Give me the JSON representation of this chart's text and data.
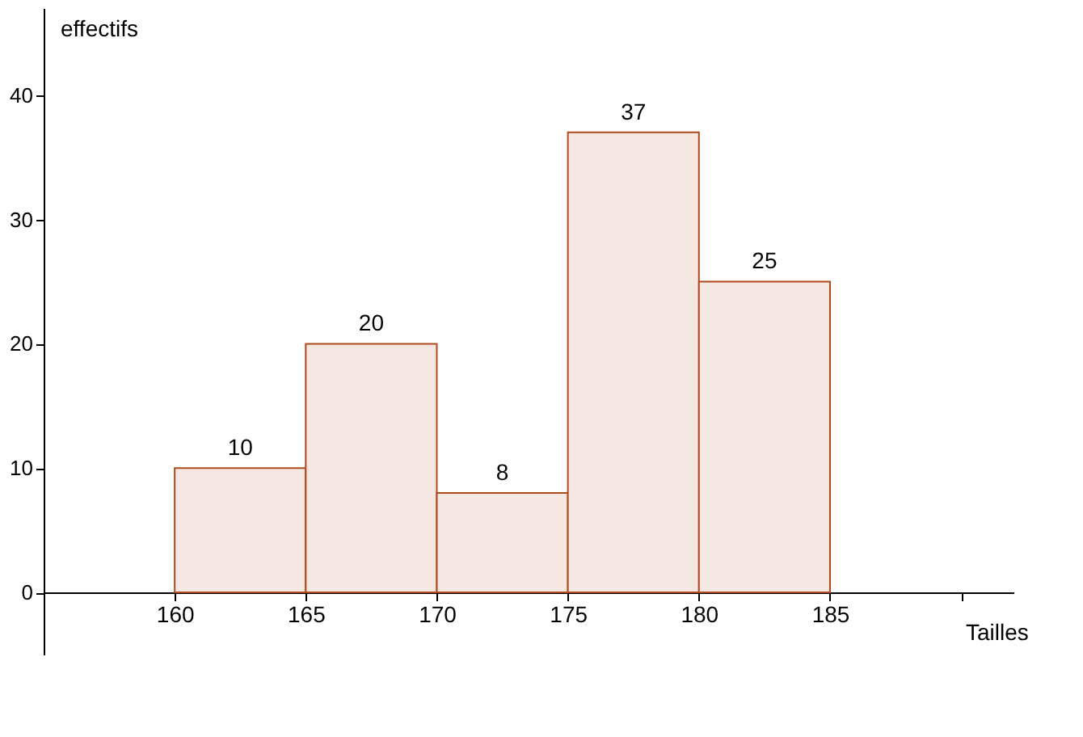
{
  "chart_data": {
    "type": "histogram",
    "xlabel": "Tailles",
    "ylabel": "effectifs",
    "bins": [
      160,
      165,
      170,
      175,
      180,
      185
    ],
    "values": [
      10,
      20,
      8,
      37,
      25
    ],
    "color": "#f5e8e3",
    "data_labels": true,
    "xlim": [
      155,
      192
    ],
    "xticks": [
      160,
      165,
      170,
      175,
      180,
      185,
      {
        "value": 190,
        "label": null
      }
    ],
    "ylim": [
      -5,
      47
    ],
    "yticks": [
      0,
      10,
      20,
      30,
      40
    ],
    "grid": false
  }
}
